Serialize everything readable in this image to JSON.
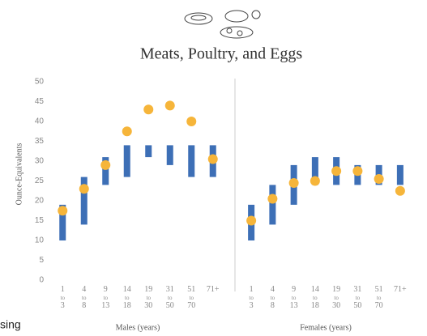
{
  "chart_data": [
    {
      "type": "range_dot",
      "title": "Meats, Poultry, and Eggs",
      "ylabel": "Ounce-Equivalents",
      "xlabel": "Males (years)",
      "categories": [
        "1 to 3",
        "4 to 8",
        "9 to 13",
        "14 to 18",
        "19 to 30",
        "31 to 50",
        "51 to 70",
        "71+"
      ],
      "ranges": [
        [
          10,
          19
        ],
        [
          14,
          26
        ],
        [
          24,
          31
        ],
        [
          26,
          34
        ],
        [
          31,
          34
        ],
        [
          29,
          34
        ],
        [
          26,
          34
        ],
        [
          26,
          34
        ]
      ],
      "intake": [
        17.5,
        23,
        29,
        37.5,
        43,
        44,
        40,
        30.5
      ],
      "range_color": "#3d6fb6",
      "intake_color": "#f6b53a",
      "ylim": [
        0,
        50
      ],
      "yticks": [
        0,
        5,
        10,
        15,
        20,
        25,
        30,
        35,
        40,
        45,
        50
      ]
    },
    {
      "type": "range_dot",
      "xlabel": "Females (years)",
      "categories": [
        "1 to 3",
        "4 to 8",
        "9 to 13",
        "14 to 18",
        "19 to 30",
        "31 to 50",
        "51 to 70",
        "71+"
      ],
      "ranges": [
        [
          10,
          19
        ],
        [
          14,
          24
        ],
        [
          19,
          29
        ],
        [
          24,
          31
        ],
        [
          24,
          31
        ],
        [
          24,
          29
        ],
        [
          24,
          29
        ],
        [
          24,
          29
        ]
      ],
      "intake": [
        15,
        20.5,
        24.5,
        25,
        27.5,
        27.5,
        25.5,
        22.5
      ],
      "range_color": "#3d6fb6",
      "intake_color": "#f6b53a",
      "ylim": [
        0,
        50
      ]
    }
  ],
  "fragment": "sing"
}
